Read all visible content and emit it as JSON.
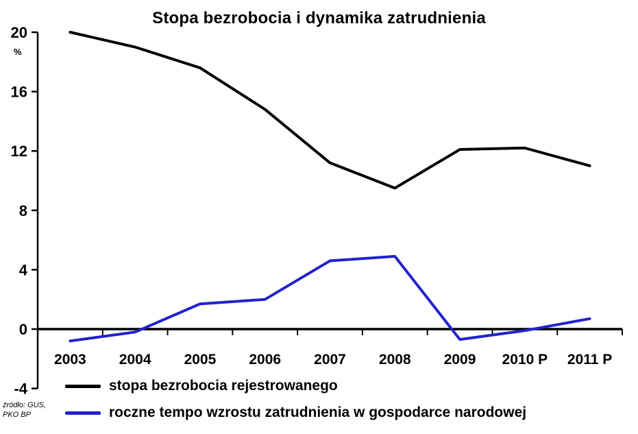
{
  "chart_data": {
    "type": "line",
    "title": "Stopa bezrobocia i dynamika zatrudnienia",
    "ylabel": "%",
    "xlabel": "",
    "categories": [
      "2003",
      "2004",
      "2005",
      "2006",
      "2007",
      "2008",
      "2009",
      "2010 P",
      "2011 P"
    ],
    "yticks": [
      20,
      16,
      12,
      8,
      4,
      0,
      -4
    ],
    "ylim": [
      -4,
      20
    ],
    "grid": false,
    "legend_position": "bottom-left",
    "series": [
      {
        "name": "stopa bezrobocia rejestrowanego",
        "color": "#000000",
        "values": [
          20.0,
          19.0,
          17.6,
          14.8,
          11.2,
          9.5,
          12.1,
          12.2,
          11.0
        ]
      },
      {
        "name": "roczne tempo wzrostu zatrudnienia w gospodarce narodowej",
        "color": "#2222cc",
        "values": [
          -0.8,
          -0.2,
          1.7,
          2.0,
          4.6,
          4.9,
          -0.7,
          -0.1,
          0.7
        ]
      }
    ],
    "source": {
      "line1": "źródło: GUS,",
      "line2": "PKO BP"
    }
  }
}
